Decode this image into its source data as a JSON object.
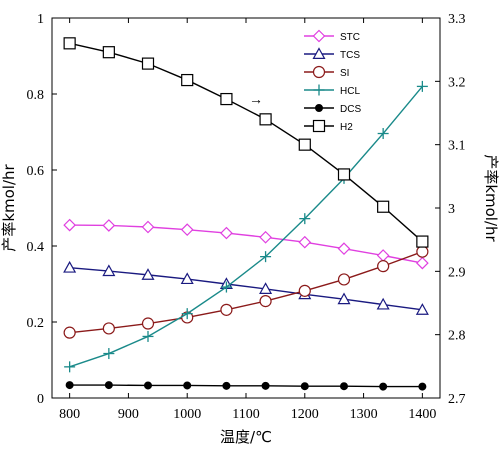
{
  "chart_data": {
    "type": "line",
    "xlabel": "温度/℃",
    "ylabel_left": "产率kmol/hr",
    "ylabel_right": "产率kmol/hr",
    "x_ticks": [
      800,
      900,
      1000,
      1100,
      1200,
      1300,
      1400
    ],
    "xlim": [
      770,
      1430
    ],
    "ylim_left": [
      0,
      1
    ],
    "ylim_right": [
      2.7,
      3.3
    ],
    "y_ticks_left": [
      0,
      0.2,
      0.4,
      0.6,
      0.8,
      1
    ],
    "y_ticks_left_labels": [
      "0",
      "0.2",
      "0.4",
      "0.6",
      "0.8",
      "1"
    ],
    "y_ticks_right": [
      2.7,
      2.8,
      2.9,
      3.0,
      3.1,
      3.2,
      3.3
    ],
    "y_ticks_right_labels": [
      "2.7",
      "2.8",
      "2.9",
      "3",
      "3.1",
      "3.2",
      "3.3"
    ],
    "legend_position": "top-right",
    "annotation": "→",
    "series": [
      {
        "name": "STC",
        "axis": "left",
        "color": "#e040e0",
        "marker": "diamond",
        "x": [
          800,
          866.7,
          933.3,
          1000,
          1066.7,
          1133.3,
          1200,
          1266.7,
          1333.3,
          1400
        ],
        "y": [
          0.455,
          0.454,
          0.45,
          0.443,
          0.434,
          0.423,
          0.41,
          0.393,
          0.375,
          0.355
        ]
      },
      {
        "name": "TCS",
        "axis": "left",
        "color": "#1a1a80",
        "marker": "triangle",
        "x": [
          800,
          866.7,
          933.3,
          1000,
          1066.7,
          1133.3,
          1200,
          1266.7,
          1333.3,
          1400
        ],
        "y": [
          0.343,
          0.334,
          0.324,
          0.313,
          0.3,
          0.287,
          0.273,
          0.26,
          0.246,
          0.232
        ]
      },
      {
        "name": "SI",
        "axis": "left",
        "color": "#8b1a1a",
        "marker": "circle",
        "x": [
          800,
          866.7,
          933.3,
          1000,
          1066.7,
          1133.3,
          1200,
          1266.7,
          1333.3,
          1400
        ],
        "y": [
          0.172,
          0.183,
          0.196,
          0.212,
          0.232,
          0.255,
          0.282,
          0.312,
          0.347,
          0.385
        ]
      },
      {
        "name": "HCL",
        "axis": "left",
        "color": "#1a8a8a",
        "marker": "plus",
        "x": [
          800,
          866.7,
          933.3,
          1000,
          1066.7,
          1133.3,
          1200,
          1266.7,
          1333.3,
          1400
        ],
        "y": [
          0.082,
          0.117,
          0.162,
          0.222,
          0.292,
          0.372,
          0.472,
          0.578,
          0.696,
          0.82
        ]
      },
      {
        "name": "DCS",
        "axis": "left",
        "color": "#000000",
        "marker": "filled-circle",
        "x": [
          800,
          866.7,
          933.3,
          1000,
          1066.7,
          1133.3,
          1200,
          1266.7,
          1333.3,
          1400
        ],
        "y": [
          0.034,
          0.034,
          0.033,
          0.033,
          0.032,
          0.032,
          0.031,
          0.031,
          0.03,
          0.03
        ]
      },
      {
        "name": "H2",
        "axis": "right",
        "color": "#000000",
        "marker": "square",
        "x": [
          800,
          866.7,
          933.3,
          1000,
          1066.7,
          1133.3,
          1200,
          1266.7,
          1333.3,
          1400
        ],
        "y": [
          3.26,
          3.246,
          3.228,
          3.202,
          3.172,
          3.14,
          3.1,
          3.053,
          3.002,
          2.947
        ]
      }
    ]
  }
}
